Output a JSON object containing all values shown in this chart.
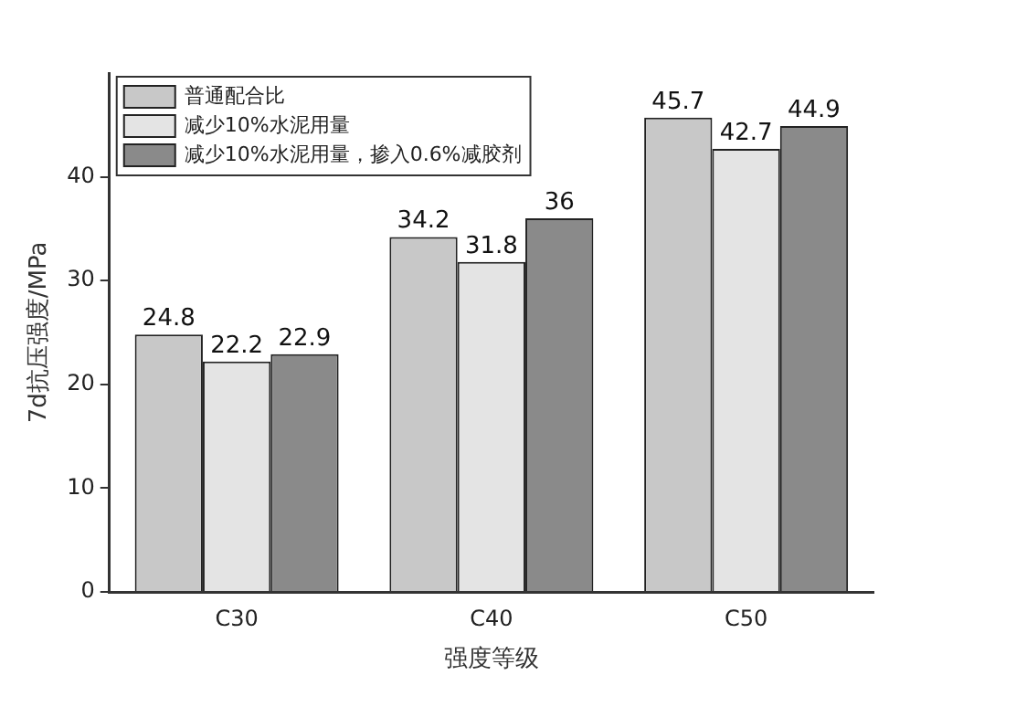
{
  "chart_data": {
    "type": "bar",
    "xlabel": "强度等级",
    "ylabel": "7d抗压强度/MPa",
    "categories": [
      "C30",
      "C40",
      "C50"
    ],
    "series": [
      {
        "name": "普通配合比",
        "color": "#c8c8c8",
        "values": [
          24.8,
          34.2,
          45.7
        ]
      },
      {
        "name": "减少10%水泥用量",
        "color": "#e4e4e4",
        "values": [
          22.2,
          31.8,
          42.7
        ]
      },
      {
        "name": "减少10%水泥用量，掺入0.6%减胶剂",
        "color": "#8a8a8a",
        "values": [
          22.9,
          36,
          44.9
        ]
      }
    ],
    "ylim": [
      0,
      50
    ],
    "yticks": [
      0,
      10,
      20,
      30,
      40
    ],
    "grid": false,
    "legend": "top left",
    "data_labels": true
  }
}
